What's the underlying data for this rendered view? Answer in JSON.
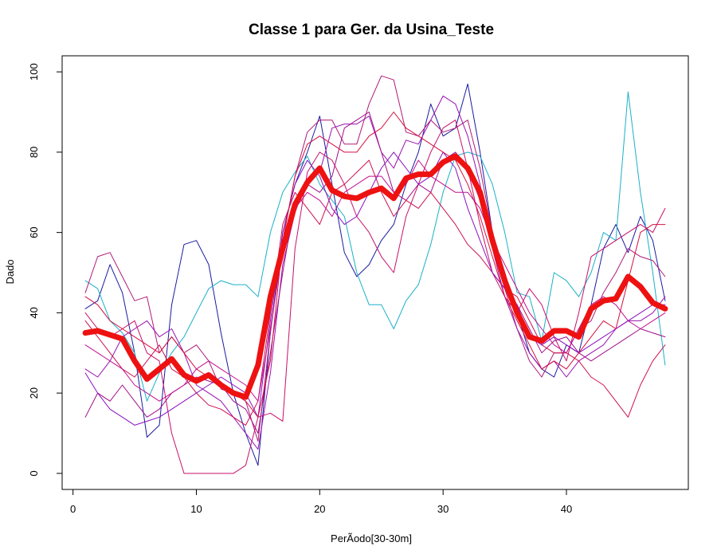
{
  "chart_data": {
    "type": "line",
    "title": "Classe  1 para Ger. da Usina_Teste",
    "xlabel": "PerÃ­odo[30-30m]",
    "ylabel": "Dado",
    "xlim": [
      1,
      48
    ],
    "ylim": [
      0,
      100
    ],
    "x_ticks": [
      "0",
      "10",
      "20",
      "30",
      "40"
    ],
    "y_ticks": [
      "0",
      "20",
      "40",
      "60",
      "80",
      "100"
    ],
    "grid": false,
    "legend": "none",
    "x": [
      1,
      2,
      3,
      4,
      5,
      6,
      7,
      8,
      9,
      10,
      11,
      12,
      13,
      14,
      15,
      16,
      17,
      18,
      19,
      20,
      21,
      22,
      23,
      24,
      25,
      26,
      27,
      28,
      29,
      30,
      31,
      32,
      33,
      34,
      35,
      36,
      37,
      38,
      39,
      40,
      41,
      42,
      43,
      44,
      45,
      46,
      47,
      48
    ],
    "series": [
      {
        "color": "#1a1aa0",
        "width": 1,
        "values": [
          41,
          43,
          52,
          45,
          30,
          9,
          12,
          42,
          57,
          58,
          52,
          35,
          20,
          10,
          2,
          35,
          60,
          72,
          80,
          89,
          72,
          55,
          49,
          52,
          58,
          62,
          72,
          80,
          92,
          84,
          86,
          97,
          80,
          60,
          50,
          40,
          30,
          26,
          24,
          32,
          30,
          42,
          56,
          62,
          55,
          64,
          58,
          43
        ]
      },
      {
        "color": "#1ab0c8",
        "width": 1,
        "values": [
          48,
          46,
          38,
          35,
          30,
          18,
          25,
          30,
          34,
          40,
          46,
          48,
          47,
          47,
          44,
          60,
          70,
          75,
          79,
          72,
          68,
          64,
          50,
          42,
          42,
          36,
          43,
          47,
          57,
          70,
          79,
          80,
          79,
          72,
          60,
          45,
          44,
          33,
          50,
          48,
          44,
          50,
          60,
          58,
          95,
          70,
          50,
          27
        ]
      },
      {
        "color": "#b01a78",
        "width": 1,
        "values": [
          45,
          54,
          55,
          49,
          43,
          44,
          30,
          34,
          30,
          32,
          28,
          21,
          20,
          18,
          8,
          35,
          58,
          74,
          85,
          88,
          88,
          82,
          82,
          92,
          99,
          98,
          85,
          84,
          88,
          85,
          86,
          88,
          76,
          60,
          46,
          36,
          28,
          24,
          30,
          30,
          36,
          38,
          45,
          50,
          56,
          54,
          53,
          49
        ]
      },
      {
        "color": "#c8106a",
        "width": 1,
        "values": [
          40,
          36,
          34,
          36,
          38,
          30,
          28,
          10,
          0,
          0,
          0,
          0,
          0,
          2,
          14,
          15,
          13,
          56,
          75,
          80,
          78,
          72,
          64,
          60,
          54,
          50,
          64,
          72,
          80,
          86,
          88,
          76,
          62,
          50,
          44,
          40,
          46,
          42,
          34,
          28,
          40,
          54,
          56,
          58,
          60,
          62,
          60,
          66
        ]
      },
      {
        "color": "#9a10b0",
        "width": 1,
        "values": [
          26,
          24,
          28,
          34,
          36,
          38,
          34,
          36,
          30,
          22,
          20,
          18,
          14,
          10,
          6,
          25,
          52,
          65,
          73,
          75,
          86,
          87,
          87,
          89,
          80,
          76,
          83,
          82,
          88,
          94,
          92,
          84,
          72,
          56,
          44,
          36,
          30,
          26,
          28,
          24,
          28,
          30,
          32,
          36,
          38,
          38,
          40,
          44
        ]
      },
      {
        "color": "#a0108a",
        "width": 1,
        "values": [
          14,
          20,
          18,
          22,
          18,
          14,
          16,
          20,
          22,
          24,
          23,
          22,
          18,
          16,
          10,
          30,
          50,
          68,
          72,
          70,
          74,
          86,
          88,
          90,
          80,
          70,
          68,
          72,
          70,
          78,
          80,
          76,
          68,
          56,
          46,
          42,
          36,
          30,
          33,
          34,
          30,
          28,
          30,
          32,
          34,
          36,
          35,
          34
        ]
      },
      {
        "color": "#cc1050",
        "width": 1,
        "values": [
          38,
          34,
          30,
          26,
          24,
          28,
          32,
          26,
          24,
          20,
          17,
          16,
          14,
          12,
          18,
          40,
          62,
          70,
          66,
          62,
          70,
          72,
          75,
          78,
          70,
          64,
          68,
          66,
          70,
          66,
          62,
          57,
          54,
          50,
          46,
          44,
          38,
          32,
          30,
          30,
          28,
          24,
          22,
          18,
          14,
          22,
          28,
          32
        ]
      },
      {
        "color": "#8a10c0",
        "width": 1,
        "values": [
          25,
          20,
          16,
          14,
          12,
          13,
          14,
          16,
          18,
          20,
          22,
          24,
          22,
          20,
          14,
          38,
          60,
          72,
          78,
          74,
          66,
          62,
          64,
          70,
          76,
          80,
          76,
          72,
          74,
          80,
          76,
          66,
          58,
          50,
          46,
          42,
          34,
          32,
          34,
          32,
          30,
          32,
          34,
          36,
          38,
          40,
          42,
          42
        ]
      },
      {
        "color": "#d41040",
        "width": 1,
        "values": [
          44,
          42,
          38,
          36,
          34,
          32,
          30,
          34,
          30,
          26,
          24,
          22,
          20,
          18,
          14,
          28,
          58,
          74,
          82,
          84,
          82,
          80,
          80,
          84,
          86,
          90,
          86,
          84,
          82,
          80,
          78,
          72,
          64,
          54,
          44,
          38,
          32,
          26,
          28,
          26,
          30,
          34,
          38,
          36,
          48,
          60,
          62,
          62
        ]
      },
      {
        "color": "#c01090",
        "width": 1,
        "values": [
          32,
          30,
          28,
          26,
          22,
          20,
          18,
          20,
          22,
          26,
          28,
          26,
          24,
          22,
          18,
          36,
          56,
          66,
          70,
          68,
          64,
          70,
          72,
          74,
          74,
          70,
          72,
          78,
          74,
          72,
          70,
          70,
          66,
          58,
          52,
          46,
          40,
          36,
          32,
          30,
          36,
          42,
          44,
          42,
          38,
          36,
          38,
          40
        ]
      },
      {
        "color": "#ee1111",
        "width": 7,
        "values": [
          35,
          35.5,
          34.5,
          33.5,
          28,
          23.5,
          26,
          28.5,
          24.5,
          23,
          24.5,
          22,
          20,
          19,
          27,
          44,
          56,
          67,
          72.5,
          76,
          70.5,
          69,
          68.5,
          70,
          71,
          68.5,
          73.5,
          74.5,
          74.5,
          77.5,
          79,
          76,
          70,
          58,
          48,
          40,
          34,
          33,
          35.5,
          35.5,
          34,
          41,
          43,
          43.5,
          49,
          46.5,
          42.5,
          41
        ]
      }
    ]
  }
}
